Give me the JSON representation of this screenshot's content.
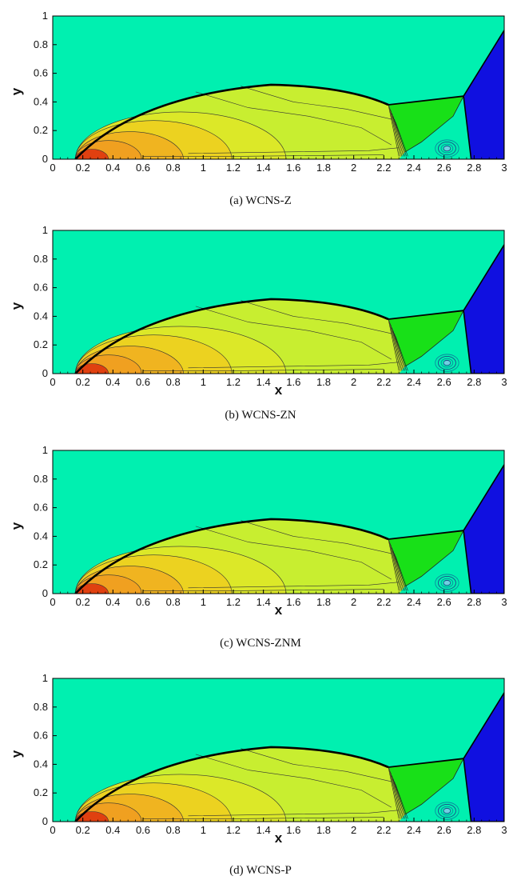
{
  "chart_data": [
    {
      "type": "heatmap",
      "caption": "(a) WCNS-Z",
      "xlabel": "",
      "ylabel": "y",
      "xlim": [
        0,
        3
      ],
      "ylim": [
        0,
        1
      ],
      "xticks": [
        "0",
        "0.2",
        "0.4",
        "0.6",
        "0.8",
        "1",
        "1.2",
        "1.4",
        "1.6",
        "1.8",
        "2",
        "2.2",
        "2.4",
        "2.6",
        "2.8",
        "3"
      ],
      "yticks": [
        "0",
        "0.2",
        "0.4",
        "0.6",
        "0.8",
        "1"
      ]
    },
    {
      "type": "heatmap",
      "caption": "(b) WCNS-ZN",
      "xlabel": "x",
      "ylabel": "y",
      "xlim": [
        0,
        3
      ],
      "ylim": [
        0,
        1
      ],
      "xticks": [
        "0",
        "0.2",
        "0.4",
        "0.6",
        "0.8",
        "1",
        "1.2",
        "1.4",
        "1.6",
        "1.8",
        "2",
        "2.2",
        "2.4",
        "2.6",
        "2.8",
        "3"
      ],
      "yticks": [
        "0",
        "0.2",
        "0.4",
        "0.6",
        "0.8",
        "1"
      ]
    },
    {
      "type": "heatmap",
      "caption": "(c) WCNS-ZNM",
      "xlabel": "x",
      "ylabel": "y",
      "xlim": [
        0,
        3
      ],
      "ylim": [
        0,
        1
      ],
      "xticks": [
        "0",
        "0.2",
        "0.4",
        "0.6",
        "0.8",
        "1",
        "1.2",
        "1.4",
        "1.6",
        "1.8",
        "2",
        "2.2",
        "2.4",
        "2.6",
        "2.8",
        "3"
      ],
      "yticks": [
        "0",
        "0.2",
        "0.4",
        "0.6",
        "0.8",
        "1"
      ]
    },
    {
      "type": "heatmap",
      "caption": "(d) WCNS-P",
      "xlabel": "x",
      "ylabel": "y",
      "xlim": [
        0,
        3
      ],
      "ylim": [
        0,
        1
      ],
      "xticks": [
        "0",
        "0.2",
        "0.4",
        "0.6",
        "0.8",
        "1",
        "1.2",
        "1.4",
        "1.6",
        "1.8",
        "2",
        "2.2",
        "2.4",
        "2.6",
        "2.8",
        "3"
      ],
      "yticks": [
        "0",
        "0.2",
        "0.4",
        "0.6",
        "0.8",
        "1"
      ]
    }
  ],
  "colors": {
    "background_region": "#00f0b0",
    "driver_region": "#1010e0",
    "shocked_green": "#18e018",
    "bubble_yellow": "#c8ee30",
    "bubble_orange": "#f0a020",
    "bubble_red": "#e04010"
  }
}
